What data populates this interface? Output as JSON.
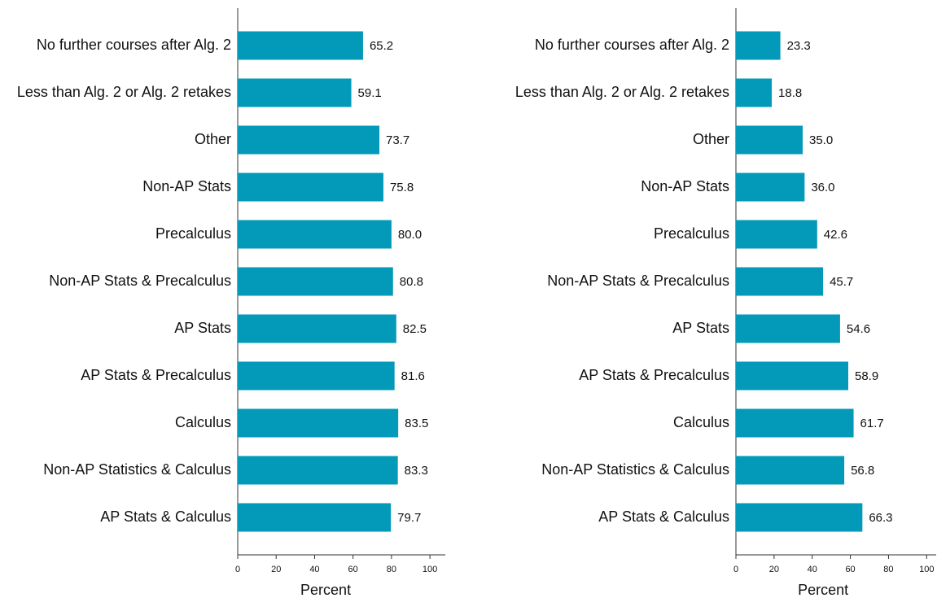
{
  "chart_data": [
    {
      "type": "bar",
      "orientation": "horizontal",
      "color": "#0399b8",
      "xlabel": "Percent",
      "categories": [
        "No further courses after Alg. 2",
        "Less than Alg. 2 or Alg. 2 retakes",
        "Other",
        "Non-AP Stats",
        "Precalculus",
        "Non-AP Stats & Precalculus",
        "AP Stats",
        "AP Stats & Precalculus",
        "Calculus",
        "Non-AP Statistics & Calculus",
        "AP Stats & Calculus"
      ],
      "values": [
        65.2,
        59.1,
        73.7,
        75.8,
        80.0,
        80.8,
        82.5,
        81.6,
        83.5,
        83.3,
        79.7
      ],
      "value_labels": [
        "65.2",
        "59.1",
        "73.7",
        "75.8",
        "80.0",
        "80.8",
        "82.5",
        "81.6",
        "83.5",
        "83.3",
        "79.7"
      ],
      "xlim": [
        0,
        108
      ],
      "xticks": [
        0,
        20,
        40,
        60,
        80,
        100
      ]
    },
    {
      "type": "bar",
      "orientation": "horizontal",
      "color": "#0399b8",
      "xlabel": "Percent",
      "categories": [
        "No further courses after Alg. 2",
        "Less than Alg. 2 or Alg. 2 retakes",
        "Other",
        "Non-AP Stats",
        "Precalculus",
        "Non-AP Stats & Precalculus",
        "AP Stats",
        "AP Stats & Precalculus",
        "Calculus",
        "Non-AP Statistics & Calculus",
        "AP Stats & Calculus"
      ],
      "values": [
        23.3,
        18.8,
        35.0,
        36.0,
        42.6,
        45.7,
        54.6,
        58.9,
        61.7,
        56.8,
        66.3
      ],
      "value_labels": [
        "23.3",
        "18.8",
        "35.0",
        "36.0",
        "42.6",
        "45.7",
        "54.6",
        "58.9",
        "61.7",
        "56.8",
        "66.3"
      ],
      "xlim": [
        0,
        105
      ],
      "xticks": [
        0,
        20,
        40,
        60,
        80,
        100
      ]
    }
  ]
}
